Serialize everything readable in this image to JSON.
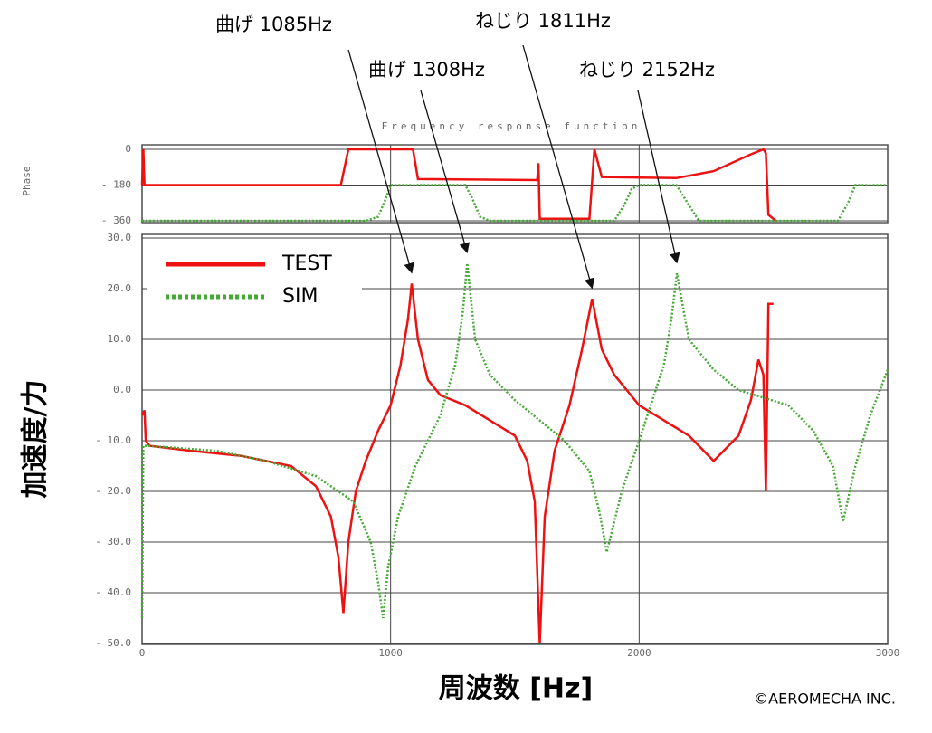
{
  "chart_data": [
    {
      "type": "line",
      "title": "Frequency response function",
      "ylabel": "Phase",
      "xlim": [
        0,
        3000
      ],
      "ylim": [
        -360,
        0
      ],
      "yticks": [
        0,
        {
          "value": -180,
          "label": "- 180"
        },
        {
          "value": -360,
          "label": "- 360"
        }
      ],
      "grid": true,
      "series": [
        {
          "color": "#ee1111",
          "x": [
            0,
            5,
            10,
            20,
            800,
            830,
            1090,
            1110,
            1590,
            1595,
            1600,
            1800,
            1820,
            1850,
            2150,
            2300,
            2450,
            2500,
            2510,
            2520,
            2550
          ],
          "values": [
            -180,
            0,
            -180,
            -180,
            -180,
            0,
            0,
            -150,
            -155,
            -70,
            -350,
            -350,
            0,
            -140,
            -145,
            -110,
            -25,
            0,
            -20,
            -330,
            -360
          ]
        },
        {
          "color": "#44aa33",
          "x": [
            0,
            900,
            950,
            980,
            1000,
            1300,
            1330,
            1360,
            1400,
            1900,
            1940,
            1970,
            2000,
            2150,
            2200,
            2240,
            2800,
            2840,
            2870,
            3000
          ],
          "values": [
            -360,
            -360,
            -340,
            -250,
            -180,
            -180,
            -250,
            -340,
            -360,
            -360,
            -280,
            -200,
            -180,
            -180,
            -280,
            -360,
            -360,
            -270,
            -180,
            -180
          ]
        }
      ]
    },
    {
      "type": "line",
      "xlabel": "周波数 [Hz]",
      "ylabel": "加速度/力",
      "xlim": [
        0,
        3000
      ],
      "xticks": [
        0,
        1000,
        2000,
        3000
      ],
      "ylim": [
        -50,
        30
      ],
      "yticks": [
        {
          "value": 30,
          "label": "30.0"
        },
        {
          "value": 20,
          "label": "20.0"
        },
        {
          "value": 10,
          "label": "10.0"
        },
        {
          "value": 0,
          "label": "0.0"
        },
        {
          "value": -10,
          "label": "- 10.0"
        },
        {
          "value": -20,
          "label": "- 20.0"
        },
        {
          "value": -30,
          "label": "- 30.0"
        },
        {
          "value": -40,
          "label": "- 40.0"
        },
        {
          "value": -50,
          "label": "- 50.0"
        }
      ],
      "grid": true,
      "legend": "upper left",
      "series": [
        {
          "name": "TEST",
          "color": "#ee1111",
          "x": [
            0,
            10,
            15,
            30,
            200,
            400,
            600,
            700,
            760,
            790,
            810,
            830,
            860,
            900,
            950,
            1000,
            1040,
            1070,
            1085,
            1110,
            1150,
            1200,
            1300,
            1400,
            1500,
            1550,
            1580,
            1600,
            1620,
            1660,
            1720,
            1770,
            1811,
            1850,
            1900,
            1950,
            2000,
            2100,
            2200,
            2300,
            2400,
            2450,
            2480,
            2500,
            2510,
            2520,
            2540
          ],
          "values": [
            -5,
            -4,
            -10,
            -11,
            -12,
            -13,
            -15,
            -19,
            -25,
            -33,
            -44,
            -30,
            -20,
            -14,
            -8,
            -3,
            5,
            14,
            21,
            10,
            2,
            -1,
            -3,
            -6,
            -9,
            -14,
            -22,
            -50,
            -25,
            -12,
            -3,
            8,
            18,
            8,
            3,
            0,
            -3,
            -6,
            -9,
            -14,
            -9,
            -2,
            6,
            3,
            -20,
            17,
            17
          ]
        },
        {
          "name": "SIM",
          "color": "#44aa33",
          "x": [
            0,
            5,
            20,
            300,
            500,
            700,
            850,
            920,
            950,
            970,
            990,
            1030,
            1100,
            1200,
            1260,
            1290,
            1308,
            1340,
            1400,
            1500,
            1600,
            1700,
            1800,
            1840,
            1870,
            1900,
            1930,
            2000,
            2100,
            2130,
            2152,
            2200,
            2300,
            2400,
            2600,
            2700,
            2780,
            2820,
            2870,
            2930,
            3000
          ],
          "values": [
            -45,
            -11,
            -11,
            -12,
            -14,
            -17,
            -22,
            -30,
            -38,
            -45,
            -35,
            -25,
            -15,
            -5,
            5,
            15,
            25,
            10,
            3,
            -2,
            -6,
            -10,
            -16,
            -24,
            -32,
            -26,
            -20,
            -10,
            5,
            14,
            23,
            10,
            4,
            0,
            -3,
            -8,
            -15,
            -26,
            -15,
            -5,
            4
          ]
        }
      ],
      "annotations": [
        {
          "text": "曲げ 1085Hz",
          "x": 1085,
          "y": 21
        },
        {
          "text": "曲げ 1308Hz",
          "x": 1308,
          "y": 25
        },
        {
          "text": "ねじり 1811Hz",
          "x": 1811,
          "y": 18
        },
        {
          "text": "ねじり 2152Hz",
          "x": 2152,
          "y": 23
        }
      ],
      "copyright": "©AEROMECHA INC."
    }
  ]
}
